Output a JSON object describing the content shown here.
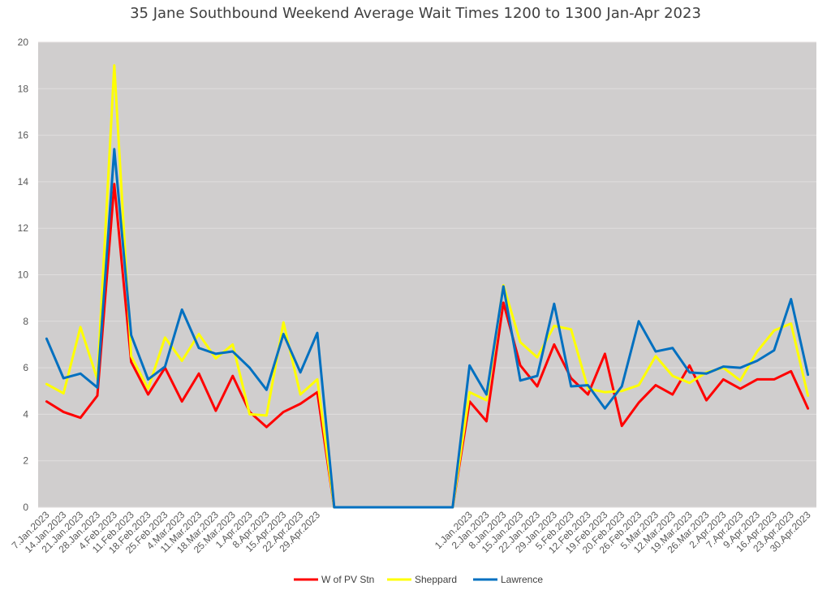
{
  "chart_data": {
    "type": "line",
    "title": "35 Jane Southbound Weekend Average Wait Times 1200 to 1300 Jan-Apr 2023",
    "xlabel": "",
    "ylabel": "",
    "ylim": [
      0,
      20
    ],
    "yticks": [
      0,
      2,
      4,
      6,
      8,
      10,
      12,
      14,
      16,
      18,
      20
    ],
    "grid": true,
    "legend_position": "bottom",
    "categories": [
      "7.Jan.2023",
      "14.Jan.2023",
      "21.Jan.2023",
      "28.Jan.2023",
      "4.Feb.2023",
      "11.Feb.2023",
      "18.Feb.2023",
      "25.Feb.2023",
      "4.Mar.2023",
      "11.Mar.2023",
      "18.Mar.2023",
      "25.Mar.2023",
      "1.Apr.2023",
      "8.Apr.2023",
      "15.Apr.2023",
      "22.Apr.2023",
      "29.Apr.2023",
      "",
      "",
      "",
      "",
      "",
      "",
      "",
      "",
      "1.Jan.2023",
      "2.Jan.2023",
      "8.Jan.2023",
      "15.Jan.2023",
      "22.Jan.2023",
      "29.Jan.2023",
      "5.Feb.2023",
      "12.Feb.2023",
      "19.Feb.2023",
      "20.Feb.2023",
      "26.Feb.2023",
      "5.Mar.2023",
      "12.Mar.2023",
      "19.Mar.2023",
      "26.Mar.2023",
      "2.Apr.2023",
      "7.Apr.2023",
      "9.Apr.2023",
      "16.Apr.2023",
      "23.Apr.2023",
      "30.Apr.2023"
    ],
    "series": [
      {
        "name": "W of PV Stn",
        "color": "#ff0000",
        "values": [
          4.55,
          4.1,
          3.85,
          4.8,
          13.9,
          6.25,
          4.85,
          6.0,
          4.55,
          5.75,
          4.15,
          5.65,
          4.1,
          3.45,
          4.1,
          4.45,
          4.95,
          0,
          0,
          0,
          0,
          0,
          0,
          0,
          0,
          4.55,
          3.7,
          8.8,
          6.1,
          5.2,
          7.0,
          5.55,
          4.85,
          6.6,
          3.5,
          4.5,
          5.25,
          4.85,
          6.1,
          4.6,
          5.5,
          5.1,
          5.5,
          5.5,
          5.85,
          4.25
        ]
      },
      {
        "name": "Sheppard",
        "color": "#ffff00",
        "values": [
          5.3,
          4.9,
          7.75,
          5.5,
          19.0,
          6.5,
          5.1,
          7.3,
          6.3,
          7.45,
          6.4,
          7.0,
          4.0,
          3.95,
          7.95,
          4.85,
          5.5,
          0,
          0,
          0,
          0,
          0,
          0,
          0,
          0,
          4.95,
          4.6,
          9.55,
          7.1,
          6.45,
          7.8,
          7.65,
          5.1,
          4.95,
          5.0,
          5.25,
          6.5,
          5.65,
          5.35,
          5.8,
          6.0,
          5.45,
          6.7,
          7.6,
          7.9,
          4.8
        ]
      },
      {
        "name": "Lawrence",
        "color": "#0070c0",
        "values": [
          7.25,
          5.55,
          5.75,
          5.15,
          15.4,
          7.4,
          5.5,
          6.05,
          8.5,
          6.85,
          6.6,
          6.7,
          6.0,
          5.05,
          7.45,
          5.8,
          7.5,
          0,
          0,
          0,
          0,
          0,
          0,
          0,
          0,
          6.1,
          4.85,
          9.5,
          5.45,
          5.65,
          8.75,
          5.2,
          5.25,
          4.25,
          5.2,
          8.0,
          6.7,
          6.85,
          5.8,
          5.75,
          6.05,
          6.0,
          6.3,
          6.75,
          8.95,
          5.7
        ]
      }
    ]
  },
  "colors": {
    "plot_background": "#d0cece",
    "gridline": "#e0dede",
    "axis_text": "#595959"
  }
}
